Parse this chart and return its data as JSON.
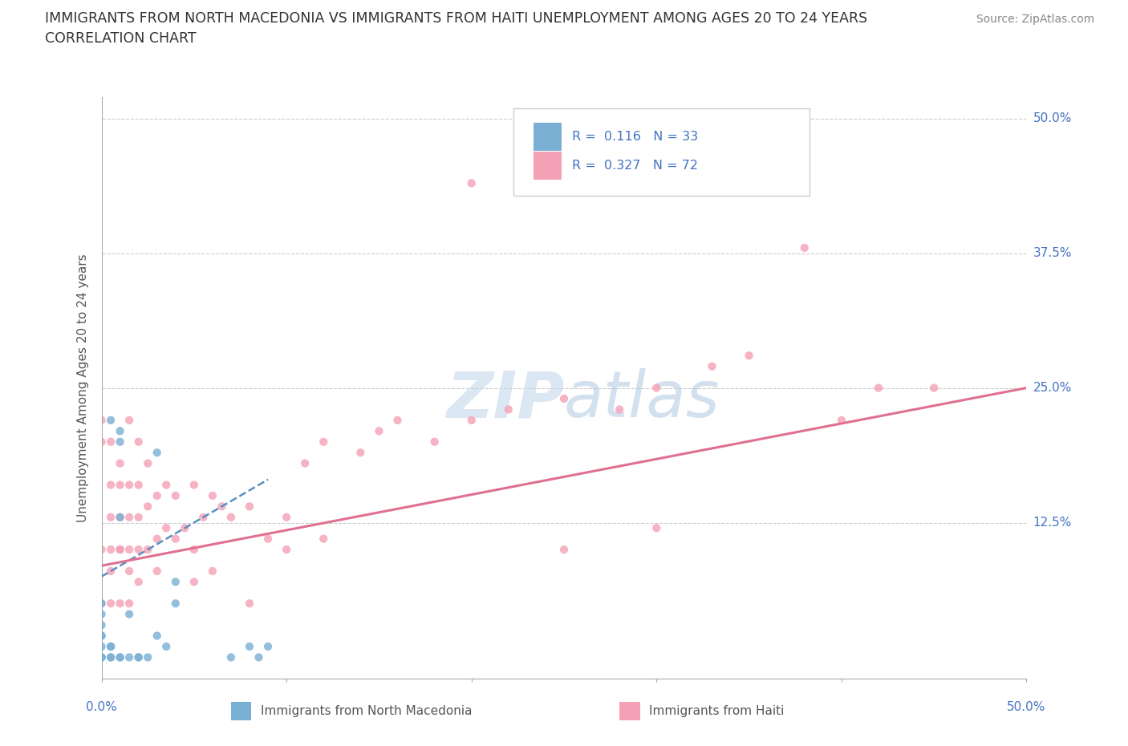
{
  "title_line1": "IMMIGRANTS FROM NORTH MACEDONIA VS IMMIGRANTS FROM HAITI UNEMPLOYMENT AMONG AGES 20 TO 24 YEARS",
  "title_line2": "CORRELATION CHART",
  "source_text": "Source: ZipAtlas.com",
  "ylabel": "Unemployment Among Ages 20 to 24 years",
  "xlim": [
    0.0,
    0.5
  ],
  "ylim": [
    -0.02,
    0.52
  ],
  "yticks": [
    0.0,
    0.125,
    0.25,
    0.375,
    0.5
  ],
  "ytick_labels": [
    "",
    "12.5%",
    "25.0%",
    "37.5%",
    "50.0%"
  ],
  "xticks": [
    0.0,
    0.1,
    0.2,
    0.3,
    0.4,
    0.5
  ],
  "grid_color": "#cccccc",
  "blue_color": "#7aafd4",
  "pink_color": "#f4a0b5",
  "blue_line_color": "#5a8fc0",
  "pink_line_color": "#e07090",
  "r_value_color": "#4472c4",
  "title_color": "#333333",
  "watermark_color": "#c5d8ed",
  "macedonia_scatter_x": [
    0.0,
    0.0,
    0.0,
    0.0,
    0.0,
    0.0,
    0.0,
    0.0,
    0.0,
    0.005,
    0.005,
    0.005,
    0.005,
    0.01,
    0.01,
    0.01,
    0.01,
    0.015,
    0.015,
    0.02,
    0.02,
    0.025,
    0.03,
    0.03,
    0.035,
    0.04,
    0.04,
    0.07,
    0.08,
    0.085,
    0.09,
    0.005,
    0.01
  ],
  "macedonia_scatter_y": [
    0.0,
    0.0,
    0.0,
    0.01,
    0.02,
    0.02,
    0.03,
    0.04,
    0.05,
    0.0,
    0.0,
    0.01,
    0.22,
    0.0,
    0.0,
    0.13,
    0.21,
    0.0,
    0.04,
    0.0,
    0.0,
    0.0,
    0.02,
    0.19,
    0.01,
    0.05,
    0.07,
    0.0,
    0.01,
    0.0,
    0.01,
    0.01,
    0.2
  ],
  "haiti_scatter_x": [
    0.0,
    0.0,
    0.0,
    0.0,
    0.005,
    0.005,
    0.005,
    0.005,
    0.005,
    0.01,
    0.01,
    0.01,
    0.01,
    0.01,
    0.015,
    0.015,
    0.015,
    0.015,
    0.015,
    0.02,
    0.02,
    0.02,
    0.02,
    0.025,
    0.025,
    0.025,
    0.03,
    0.03,
    0.035,
    0.035,
    0.04,
    0.04,
    0.045,
    0.05,
    0.05,
    0.055,
    0.06,
    0.065,
    0.07,
    0.08,
    0.09,
    0.1,
    0.11,
    0.12,
    0.14,
    0.16,
    0.18,
    0.2,
    0.22,
    0.25,
    0.28,
    0.3,
    0.33,
    0.38,
    0.4,
    0.42,
    0.45,
    0.06,
    0.3,
    0.12,
    0.08,
    0.35,
    0.2,
    0.25,
    0.15,
    0.1,
    0.05,
    0.03,
    0.02,
    0.015,
    0.01,
    0.005
  ],
  "haiti_scatter_y": [
    0.05,
    0.1,
    0.2,
    0.22,
    0.05,
    0.1,
    0.13,
    0.16,
    0.2,
    0.05,
    0.1,
    0.13,
    0.16,
    0.18,
    0.05,
    0.1,
    0.13,
    0.16,
    0.22,
    0.1,
    0.13,
    0.16,
    0.2,
    0.1,
    0.14,
    0.18,
    0.11,
    0.15,
    0.12,
    0.16,
    0.11,
    0.15,
    0.12,
    0.1,
    0.16,
    0.13,
    0.15,
    0.14,
    0.13,
    0.14,
    0.11,
    0.13,
    0.18,
    0.2,
    0.19,
    0.22,
    0.2,
    0.22,
    0.23,
    0.24,
    0.23,
    0.25,
    0.27,
    0.38,
    0.22,
    0.25,
    0.25,
    0.08,
    0.12,
    0.11,
    0.05,
    0.28,
    0.44,
    0.1,
    0.21,
    0.1,
    0.07,
    0.08,
    0.07,
    0.08,
    0.1,
    0.08
  ],
  "blue_trend_x": [
    0.0,
    0.09
  ],
  "blue_trend_y": [
    0.075,
    0.165
  ],
  "pink_trend_x": [
    0.0,
    0.5
  ],
  "pink_trend_y": [
    0.085,
    0.25
  ]
}
